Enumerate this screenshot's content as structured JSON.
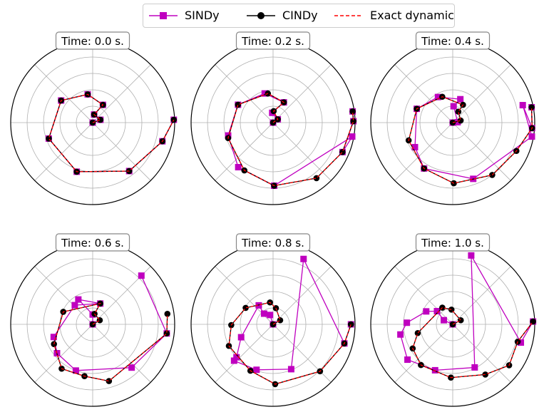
{
  "legend": {
    "items": [
      {
        "label": "SINDy",
        "color": "#bf00bf",
        "marker": "square",
        "dash": false
      },
      {
        "label": "CINDy",
        "color": "#000000",
        "marker": "circle",
        "dash": false
      },
      {
        "label": "Exact dynamic",
        "color": "#ff0000",
        "marker": "none",
        "dash": true
      }
    ]
  },
  "chart_data": {
    "type": "polar-line",
    "rmax": 1.0,
    "radial_grid": [
      0.2,
      0.4,
      0.6,
      0.8
    ],
    "angular_grid_deg": [
      0,
      45,
      90,
      135,
      180,
      225,
      270,
      315
    ],
    "grid": true,
    "legend_placement": "top-center",
    "panels": [
      {
        "title": "Time: 0.0 s.",
        "exact": [
          [
            0.0,
            0
          ],
          [
            0.1,
            20
          ],
          [
            0.1,
            80
          ],
          [
            0.25,
            60
          ],
          [
            0.35,
            100
          ],
          [
            0.47,
            145
          ],
          [
            0.57,
            200
          ],
          [
            0.63,
            252
          ],
          [
            0.74,
            307
          ],
          [
            0.88,
            345
          ],
          [
            0.99,
            2
          ]
        ],
        "cindy": [
          [
            0.0,
            0
          ],
          [
            0.1,
            20
          ],
          [
            0.1,
            80
          ],
          [
            0.25,
            60
          ],
          [
            0.35,
            100
          ],
          [
            0.47,
            145
          ],
          [
            0.57,
            200
          ],
          [
            0.63,
            252
          ],
          [
            0.74,
            307
          ],
          [
            0.88,
            345
          ],
          [
            0.99,
            2
          ]
        ],
        "sindy": [
          [
            0.0,
            0
          ],
          [
            0.1,
            20
          ],
          [
            0.1,
            80
          ],
          [
            0.25,
            60
          ],
          [
            0.35,
            100
          ],
          [
            0.47,
            145
          ],
          [
            0.57,
            200
          ],
          [
            0.63,
            252
          ],
          [
            0.74,
            307
          ],
          [
            0.88,
            345
          ],
          [
            0.99,
            2
          ]
        ]
      },
      {
        "title": "Time: 0.2 s.",
        "exact": [
          [
            0.0,
            0
          ],
          [
            0.07,
            35
          ],
          [
            0.14,
            87
          ],
          [
            0.28,
            62
          ],
          [
            0.36,
            100
          ],
          [
            0.48,
            153
          ],
          [
            0.58,
            199
          ],
          [
            0.68,
            239
          ],
          [
            0.77,
            271
          ],
          [
            0.86,
            308
          ],
          [
            0.92,
            337
          ],
          [
            0.98,
            1
          ],
          [
            0.98,
            8
          ]
        ],
        "cindy": [
          [
            0.0,
            0
          ],
          [
            0.07,
            35
          ],
          [
            0.14,
            87
          ],
          [
            0.28,
            62
          ],
          [
            0.36,
            100
          ],
          [
            0.48,
            153
          ],
          [
            0.58,
            199
          ],
          [
            0.68,
            239
          ],
          [
            0.77,
            271
          ],
          [
            0.86,
            308
          ],
          [
            0.92,
            337
          ],
          [
            0.98,
            1
          ],
          [
            0.98,
            8
          ]
        ],
        "sindy": [
          [
            0.0,
            0
          ],
          [
            0.07,
            35
          ],
          [
            0.12,
            95
          ],
          [
            0.28,
            62
          ],
          [
            0.37,
            106
          ],
          [
            0.48,
            153
          ],
          [
            0.57,
            196
          ],
          [
            0.69,
            232
          ],
          [
            0.77,
            271
          ],
          [
            0.98,
            350
          ],
          [
            0.92,
            337
          ],
          [
            0.98,
            1
          ],
          [
            0.98,
            8
          ]
        ]
      },
      {
        "title": "Time: 0.4 s.",
        "exact": [
          [
            0.0,
            0
          ],
          [
            0.1,
            15
          ],
          [
            0.15,
            63
          ],
          [
            0.25,
            60
          ],
          [
            0.34,
            112
          ],
          [
            0.47,
            159
          ],
          [
            0.58,
            202
          ],
          [
            0.66,
            238
          ],
          [
            0.74,
            271
          ],
          [
            0.8,
            307
          ],
          [
            0.85,
            336
          ],
          [
            0.97,
            356
          ],
          [
            0.98,
            11
          ]
        ],
        "cindy": [
          [
            0.0,
            0
          ],
          [
            0.1,
            15
          ],
          [
            0.15,
            63
          ],
          [
            0.25,
            60
          ],
          [
            0.34,
            112
          ],
          [
            0.47,
            159
          ],
          [
            0.58,
            202
          ],
          [
            0.66,
            238
          ],
          [
            0.74,
            271
          ],
          [
            0.8,
            307
          ],
          [
            0.85,
            336
          ],
          [
            0.97,
            356
          ],
          [
            0.98,
            11
          ]
        ],
        "sindy": [
          [
            0.0,
            0
          ],
          [
            0.06,
            5
          ],
          [
            0.2,
            87
          ],
          [
            0.3,
            72
          ],
          [
            0.36,
            120
          ],
          [
            0.47,
            159
          ],
          [
            0.55,
            213
          ],
          [
            0.66,
            238
          ],
          [
            0.73,
            290
          ],
          [
            0.98,
            350
          ],
          [
            0.88,
            14
          ],
          [
            0.97,
            356
          ],
          [
            0.98,
            11
          ]
        ]
      },
      {
        "title": "Time: 0.6 s.",
        "exact": [
          [
            0.0,
            0
          ],
          [
            0.1,
            30
          ],
          [
            0.13,
            80
          ],
          [
            0.27,
            70
          ],
          [
            0.39,
            157
          ],
          [
            0.53,
            207
          ],
          [
            0.66,
            235
          ],
          [
            0.64,
            261
          ],
          [
            0.72,
            286
          ],
          [
            0.91,
            353
          ],
          [
            0.92,
            8
          ]
        ],
        "cindy": [
          [
            0.0,
            0
          ],
          [
            0.1,
            30
          ],
          [
            0.13,
            80
          ],
          [
            0.27,
            70
          ],
          [
            0.39,
            157
          ],
          [
            0.53,
            207
          ],
          [
            0.66,
            235
          ],
          [
            0.64,
            261
          ],
          [
            0.72,
            286
          ],
          [
            0.91,
            353
          ],
          [
            0.92,
            8
          ]
        ],
        "sindy": [
          [
            0.0,
            0
          ],
          [
            0.12,
            90
          ],
          [
            0.35,
            120
          ],
          [
            0.27,
            70
          ],
          [
            0.32,
            133
          ],
          [
            0.5,
            198
          ],
          [
            0.56,
            219
          ],
          [
            0.6,
            250
          ],
          [
            0.71,
            312
          ],
          [
            0.91,
            353
          ],
          [
            0.84,
            45
          ]
        ]
      },
      {
        "title": "Time: 0.8 s.",
        "exact": [
          [
            0.0,
            0
          ],
          [
            0.1,
            30
          ],
          [
            0.2,
            80
          ],
          [
            0.27,
            98
          ],
          [
            0.39,
            149
          ],
          [
            0.51,
            181
          ],
          [
            0.6,
            206
          ],
          [
            0.63,
            244
          ],
          [
            0.73,
            272
          ],
          [
            0.81,
            315
          ],
          [
            0.9,
            345
          ],
          [
            0.95,
            360
          ]
        ],
        "cindy": [
          [
            0.0,
            0
          ],
          [
            0.1,
            30
          ],
          [
            0.2,
            80
          ],
          [
            0.27,
            98
          ],
          [
            0.39,
            149
          ],
          [
            0.51,
            181
          ],
          [
            0.6,
            206
          ],
          [
            0.63,
            244
          ],
          [
            0.73,
            272
          ],
          [
            0.81,
            315
          ],
          [
            0.9,
            345
          ],
          [
            0.95,
            360
          ]
        ],
        "sindy": [
          [
            0.0,
            0
          ],
          [
            0.12,
            108
          ],
          [
            0.17,
            130
          ],
          [
            0.29,
            127
          ],
          [
            0.42,
            202
          ],
          [
            0.6,
            222
          ],
          [
            0.65,
            223
          ],
          [
            0.59,
            250
          ],
          [
            0.59,
            292
          ],
          [
            0.88,
            65
          ],
          [
            0.9,
            345
          ],
          [
            0.95,
            360
          ]
        ]
      },
      {
        "title": "Time: 1.0 s.",
        "exact": [
          [
            0.0,
            0
          ],
          [
            0.11,
            27
          ],
          [
            0.18,
            95
          ],
          [
            0.24,
            122
          ],
          [
            0.44,
            194
          ],
          [
            0.57,
            211
          ],
          [
            0.63,
            232
          ],
          [
            0.65,
            268
          ],
          [
            0.73,
            303
          ],
          [
            0.85,
            324
          ],
          [
            0.82,
            345
          ],
          [
            0.98,
            2
          ]
        ],
        "cindy": [
          [
            0.0,
            0
          ],
          [
            0.11,
            27
          ],
          [
            0.18,
            95
          ],
          [
            0.24,
            122
          ],
          [
            0.44,
            194
          ],
          [
            0.57,
            211
          ],
          [
            0.63,
            232
          ],
          [
            0.65,
            268
          ],
          [
            0.73,
            303
          ],
          [
            0.85,
            324
          ],
          [
            0.82,
            345
          ],
          [
            0.98,
            2
          ]
        ],
        "sindy": [
          [
            0.0,
            0
          ],
          [
            0.12,
            155
          ],
          [
            0.25,
            140
          ],
          [
            0.36,
            154
          ],
          [
            0.56,
            178
          ],
          [
            0.65,
            191
          ],
          [
            0.7,
            218
          ],
          [
            0.6,
            249
          ],
          [
            0.59,
            297
          ],
          [
            0.87,
            75
          ],
          [
            0.86,
            345
          ],
          [
            0.98,
            2
          ]
        ]
      }
    ]
  }
}
